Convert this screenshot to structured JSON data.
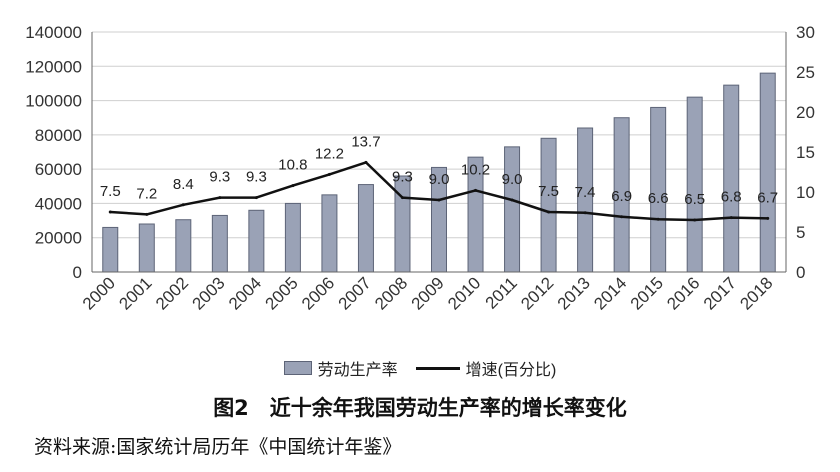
{
  "chart_data": {
    "type": "bar",
    "categories": [
      "2000",
      "2001",
      "2002",
      "2003",
      "2004",
      "2005",
      "2006",
      "2007",
      "2008",
      "2009",
      "2010",
      "2011",
      "2012",
      "2013",
      "2014",
      "2015",
      "2016",
      "2017",
      "2018"
    ],
    "series": [
      {
        "name": "劳动生产率",
        "type": "bar",
        "axis": "left",
        "values": [
          26000,
          28000,
          30500,
          33000,
          36000,
          40000,
          45000,
          51000,
          56000,
          61000,
          67000,
          73000,
          78000,
          84000,
          90000,
          96000,
          102000,
          109000,
          116000
        ]
      },
      {
        "name": "增速(百分比)",
        "type": "line",
        "axis": "right",
        "values": [
          7.5,
          7.2,
          8.4,
          9.3,
          9.3,
          10.8,
          12.2,
          13.7,
          9.3,
          9.0,
          10.2,
          9.0,
          7.5,
          7.4,
          6.9,
          6.6,
          6.5,
          6.8,
          6.7
        ]
      }
    ],
    "y_left": {
      "ylim": [
        0,
        140000
      ],
      "ticks": [
        "0",
        "20000",
        "40000",
        "60000",
        "80000",
        "100000",
        "120000",
        "140000"
      ]
    },
    "y_right": {
      "ylim": [
        0,
        30
      ],
      "ticks": [
        "0",
        "5",
        "10",
        "15",
        "20",
        "25",
        "30"
      ]
    },
    "data_labels": [
      "7.5",
      "7.2",
      "8.4",
      "9.3",
      "9.3",
      "10.8",
      "12.2",
      "13.7",
      "9.3",
      "9.0",
      "10.2",
      "9.0",
      "7.5",
      "7.4",
      "6.9",
      "6.6",
      "6.5",
      "6.8",
      "6.7"
    ],
    "grid": true,
    "legend_position": "bottom",
    "colors": {
      "bar_fill": "#9aa2b6",
      "bar_edge": "#5d6477",
      "line": "#111111",
      "grid": "#cfcfcf"
    }
  },
  "legend": {
    "bar_label": "劳动生产率",
    "line_label": "增速(百分比)"
  },
  "caption": "图2　近十余年我国劳动生产率的增长率变化",
  "source": "资料来源:国家统计局历年《中国统计年鉴》"
}
